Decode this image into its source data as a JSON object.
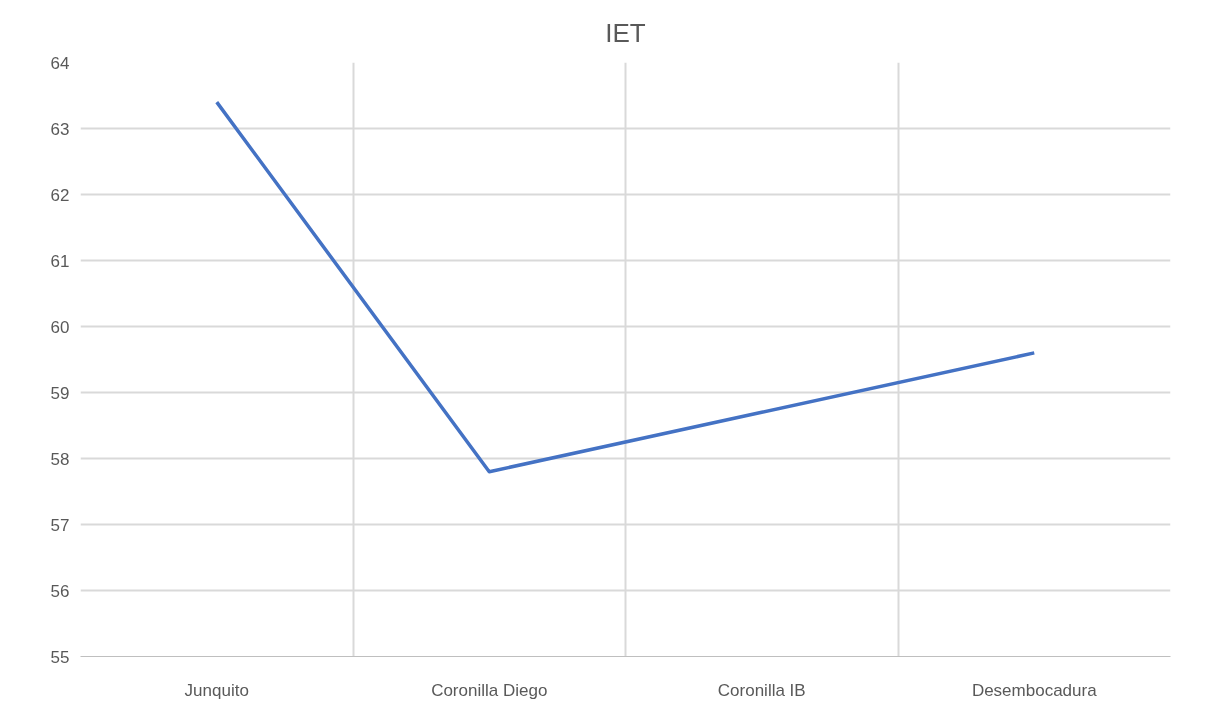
{
  "chart_data": {
    "type": "line",
    "title": "IET",
    "categories": [
      "Junquito",
      "Coronilla Diego",
      "Coronilla IB",
      "Desembocadura"
    ],
    "series": [
      {
        "color": "#4472c4",
        "values": [
          63.4,
          57.8,
          58.7,
          59.6
        ]
      }
    ],
    "ylim": [
      55,
      64
    ],
    "yticks": [
      55,
      56,
      57,
      58,
      59,
      60,
      61,
      62,
      63,
      64
    ],
    "grid": true,
    "marker": "none",
    "line_style": "solid"
  }
}
